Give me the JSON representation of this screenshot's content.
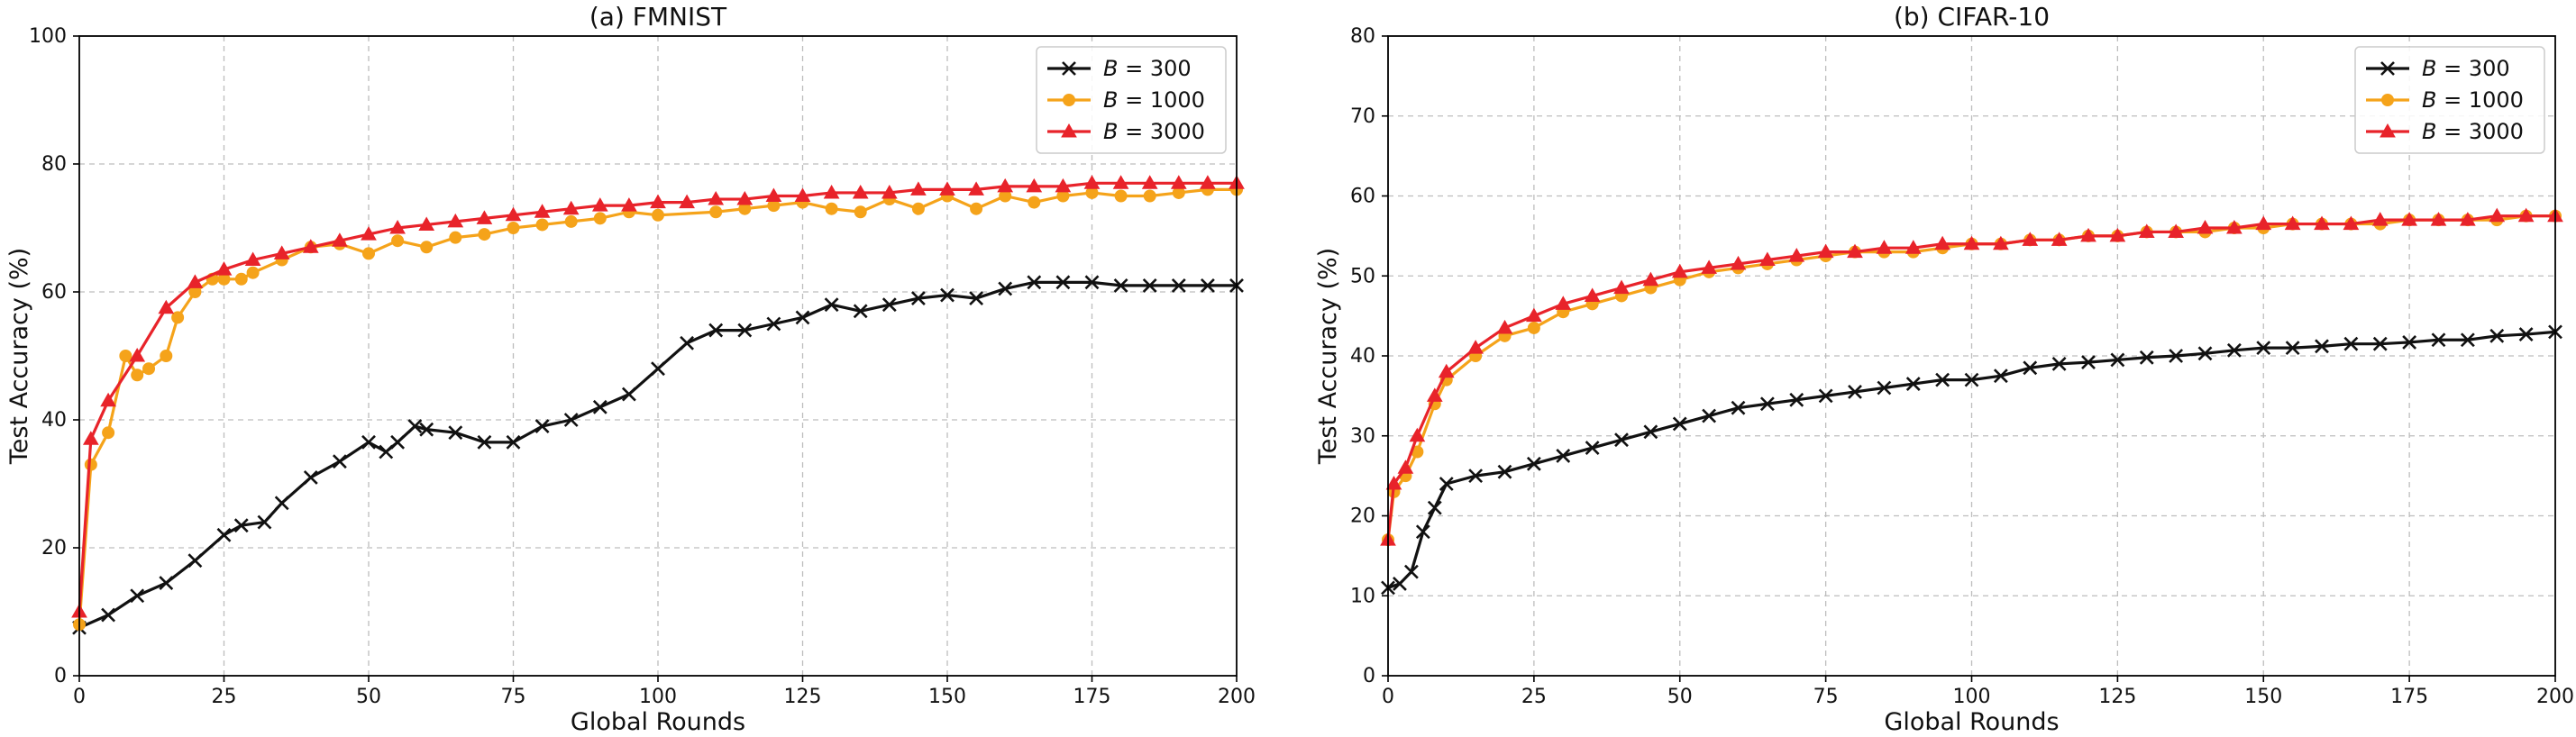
{
  "colors": {
    "b300": "#111111",
    "b1000": "#f5a31a",
    "b3000": "#e8232a",
    "grid": "#bdbdbd",
    "axis": "#000000"
  },
  "chart_data": [
    {
      "type": "line",
      "title": "(a) FMNIST",
      "xlabel": "Global Rounds",
      "ylabel": "Test Accuracy (%)",
      "xlim": [
        0,
        200
      ],
      "ylim": [
        0,
        100
      ],
      "xticks": [
        0,
        25,
        50,
        75,
        100,
        125,
        150,
        175,
        200
      ],
      "yticks": [
        0,
        20,
        40,
        60,
        80,
        100
      ],
      "ytick_labels": [
        "0",
        "20",
        "40",
        "60",
        "80",
        "100"
      ],
      "grid": true,
      "legend_position": "top-right",
      "series": [
        {
          "name": "B = 300",
          "label_prefix": "B",
          "label_value": "= 300",
          "color_key": "b300",
          "marker": "x",
          "x": [
            0,
            5,
            10,
            15,
            20,
            25,
            28,
            32,
            35,
            40,
            45,
            50,
            53,
            55,
            58,
            60,
            65,
            70,
            75,
            80,
            85,
            90,
            95,
            100,
            105,
            110,
            115,
            120,
            125,
            130,
            135,
            140,
            145,
            150,
            155,
            160,
            165,
            170,
            175,
            180,
            185,
            190,
            195,
            200
          ],
          "y": [
            7.5,
            9.5,
            12.5,
            14.5,
            18,
            22,
            23.5,
            24,
            27,
            31,
            33.5,
            36.5,
            35,
            36.5,
            39,
            38.5,
            38,
            36.5,
            36.5,
            39,
            40,
            42,
            44,
            48,
            52,
            54,
            54,
            55,
            56,
            58,
            57,
            58,
            59,
            59.5,
            59,
            60.5,
            61.5,
            61.5,
            61.5,
            61,
            61,
            61,
            61,
            61
          ]
        },
        {
          "name": "B = 1000",
          "label_prefix": "B",
          "label_value": "= 1000",
          "color_key": "b1000",
          "marker": "o",
          "x": [
            0,
            2,
            5,
            8,
            10,
            12,
            15,
            17,
            20,
            23,
            25,
            28,
            30,
            35,
            40,
            45,
            50,
            55,
            60,
            65,
            70,
            75,
            80,
            85,
            90,
            95,
            100,
            110,
            115,
            120,
            125,
            130,
            135,
            140,
            145,
            150,
            155,
            160,
            165,
            170,
            175,
            180,
            185,
            190,
            195,
            200
          ],
          "y": [
            8,
            33,
            38,
            50,
            47,
            48,
            50,
            56,
            60,
            62,
            62,
            62,
            63,
            65,
            67,
            67.5,
            66,
            68,
            67,
            68.5,
            69,
            70,
            70.5,
            71,
            71.5,
            72.5,
            72,
            72.5,
            73,
            73.5,
            74,
            73,
            72.5,
            74.5,
            73,
            75,
            73,
            75,
            74,
            75,
            75.5,
            75,
            75,
            75.5,
            76,
            76
          ]
        },
        {
          "name": "B = 3000",
          "label_prefix": "B",
          "label_value": "= 3000",
          "color_key": "b3000",
          "marker": "^",
          "x": [
            0,
            2,
            5,
            10,
            15,
            20,
            25,
            30,
            35,
            40,
            45,
            50,
            55,
            60,
            65,
            70,
            75,
            80,
            85,
            90,
            95,
            100,
            105,
            110,
            115,
            120,
            125,
            130,
            135,
            140,
            145,
            150,
            155,
            160,
            165,
            170,
            175,
            180,
            185,
            190,
            195,
            200
          ],
          "y": [
            10,
            37,
            43,
            50,
            57.5,
            61.5,
            63.5,
            65,
            66,
            67,
            68,
            69,
            70,
            70.5,
            71,
            71.5,
            72,
            72.5,
            73,
            73.5,
            73.5,
            74,
            74,
            74.5,
            74.5,
            75,
            75,
            75.5,
            75.5,
            75.5,
            76,
            76,
            76,
            76.5,
            76.5,
            76.5,
            77,
            77,
            77,
            77,
            77,
            77
          ]
        }
      ]
    },
    {
      "type": "line",
      "title": "(b) CIFAR-10",
      "xlabel": "Global Rounds",
      "ylabel": "Test Accuracy (%)",
      "xlim": [
        0,
        200
      ],
      "ylim": [
        0,
        80
      ],
      "xticks": [
        0,
        25,
        50,
        75,
        100,
        125,
        150,
        175,
        200
      ],
      "yticks": [
        0,
        10,
        20,
        30,
        40,
        50,
        60,
        70,
        80
      ],
      "ytick_labels": [
        "0",
        "10",
        "20",
        "30",
        "40",
        "50",
        "60",
        "70",
        "80"
      ],
      "grid": true,
      "legend_position": "top-right",
      "series": [
        {
          "name": "B = 300",
          "label_prefix": "B",
          "label_value": "= 300",
          "color_key": "b300",
          "marker": "x",
          "x": [
            0,
            2,
            4,
            6,
            8,
            10,
            15,
            20,
            25,
            30,
            35,
            40,
            45,
            50,
            55,
            60,
            65,
            70,
            75,
            80,
            85,
            90,
            95,
            100,
            105,
            110,
            115,
            120,
            125,
            130,
            135,
            140,
            145,
            150,
            155,
            160,
            165,
            170,
            175,
            180,
            185,
            190,
            195,
            200
          ],
          "y": [
            11,
            11.5,
            13,
            18,
            21,
            24,
            25,
            25.5,
            26.5,
            27.5,
            28.5,
            29.5,
            30.5,
            31.5,
            32.5,
            33.5,
            34,
            34.5,
            35,
            35.5,
            36,
            36.5,
            37,
            37,
            37.5,
            38.5,
            39,
            39.2,
            39.5,
            39.8,
            40,
            40.3,
            40.7,
            41,
            41,
            41.2,
            41.5,
            41.5,
            41.7,
            42,
            42,
            42.5,
            42.7,
            43
          ]
        },
        {
          "name": "B = 1000",
          "label_prefix": "B",
          "label_value": "= 1000",
          "color_key": "b1000",
          "marker": "o",
          "x": [
            0,
            1,
            3,
            5,
            8,
            10,
            15,
            20,
            25,
            30,
            35,
            40,
            45,
            50,
            55,
            60,
            65,
            70,
            75,
            80,
            85,
            90,
            95,
            100,
            105,
            110,
            115,
            120,
            125,
            130,
            135,
            140,
            145,
            150,
            155,
            160,
            165,
            170,
            175,
            180,
            185,
            190,
            195,
            200
          ],
          "y": [
            17,
            23,
            25,
            28,
            34,
            37,
            40,
            42.5,
            43.5,
            45.5,
            46.5,
            47.5,
            48.5,
            49.5,
            50.5,
            51,
            51.5,
            52,
            52.5,
            53,
            53,
            53,
            53.5,
            54,
            54,
            54.5,
            54.5,
            55,
            55,
            55.5,
            55.5,
            55.5,
            56,
            56,
            56.5,
            56.5,
            56.5,
            56.5,
            57,
            57,
            57,
            57,
            57.5,
            57.5
          ]
        },
        {
          "name": "B = 3000",
          "label_prefix": "B",
          "label_value": "= 3000",
          "color_key": "b3000",
          "marker": "^",
          "x": [
            0,
            1,
            3,
            5,
            8,
            10,
            15,
            20,
            25,
            30,
            35,
            40,
            45,
            50,
            55,
            60,
            65,
            70,
            75,
            80,
            85,
            90,
            95,
            100,
            105,
            110,
            115,
            120,
            125,
            130,
            135,
            140,
            145,
            150,
            155,
            160,
            165,
            170,
            175,
            180,
            185,
            190,
            195,
            200
          ],
          "y": [
            17,
            24,
            26,
            30,
            35,
            38,
            41,
            43.5,
            45,
            46.5,
            47.5,
            48.5,
            49.5,
            50.5,
            51,
            51.5,
            52,
            52.5,
            53,
            53,
            53.5,
            53.5,
            54,
            54,
            54,
            54.5,
            54.5,
            55,
            55,
            55.5,
            55.5,
            56,
            56,
            56.5,
            56.5,
            56.5,
            56.5,
            57,
            57,
            57,
            57,
            57.5,
            57.5,
            57.5
          ]
        }
      ]
    }
  ]
}
